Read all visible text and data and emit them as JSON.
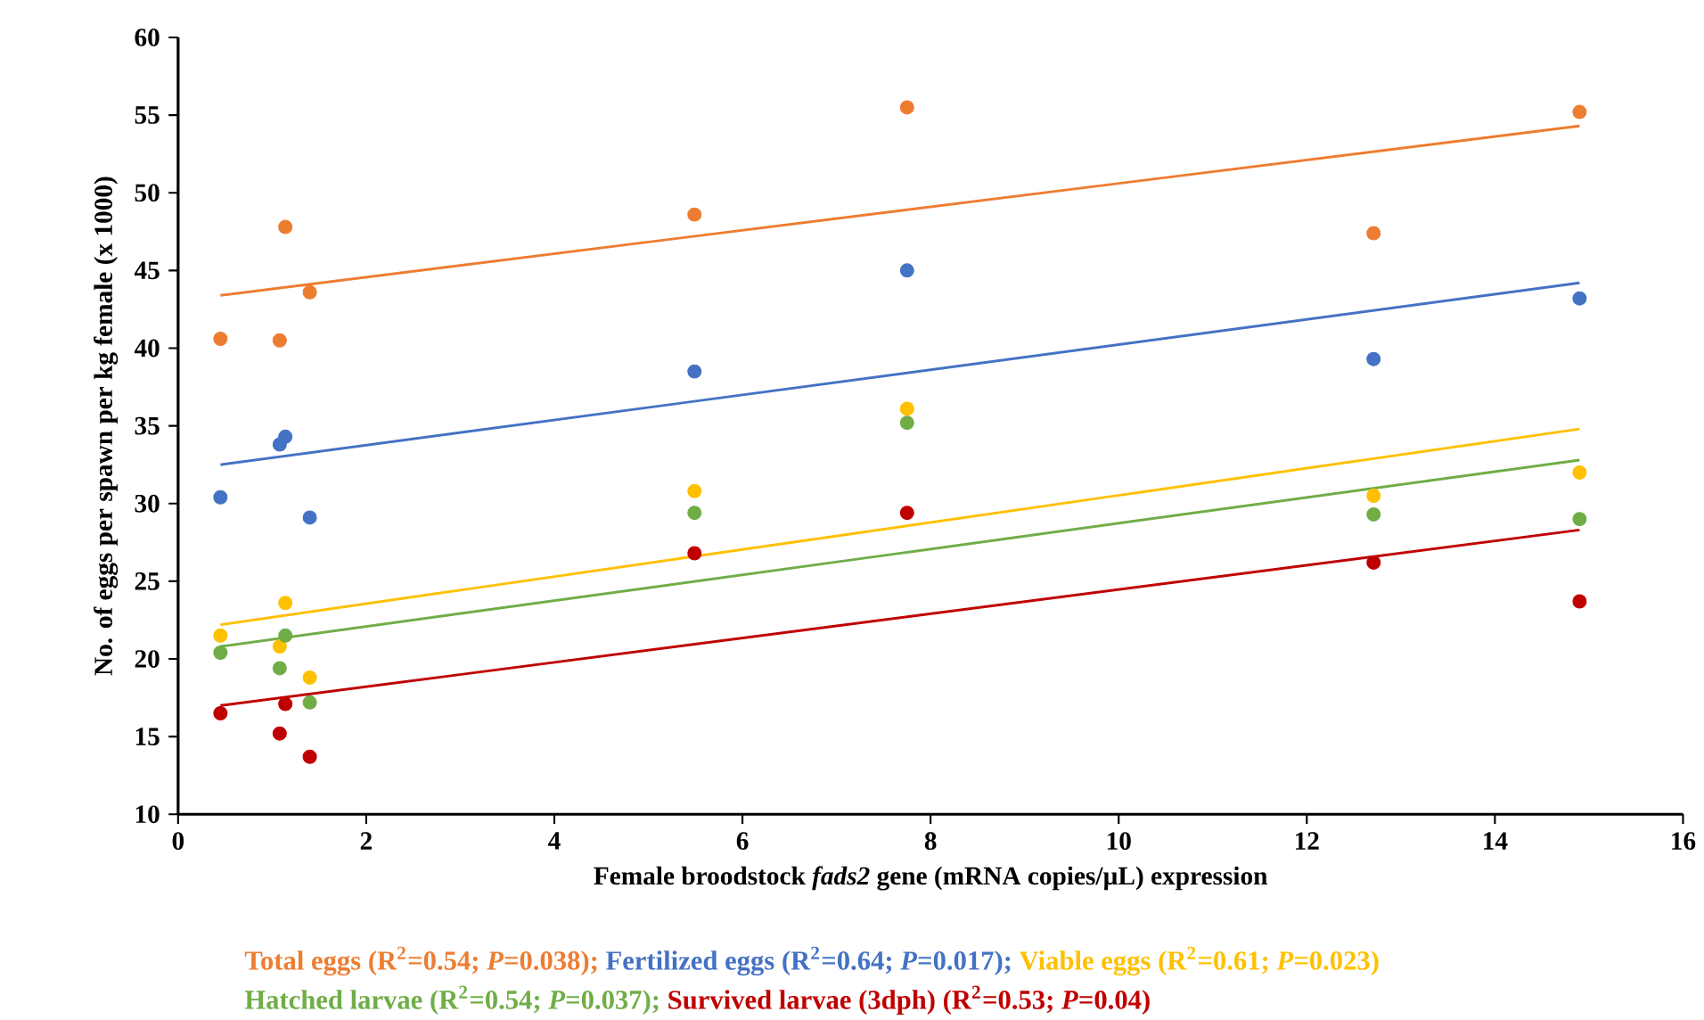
{
  "chart_data": {
    "type": "scatter",
    "xlabel": "Female broodstock *fads2* gene (mRNA copies/µL) expression",
    "ylabel": "No. of eggs per spawn per kg female (x 1000)",
    "xlim": [
      0,
      16
    ],
    "xticks": [
      0,
      2,
      4,
      6,
      8,
      10,
      12,
      14,
      16
    ],
    "ylim": [
      10,
      60
    ],
    "yticks": [
      10,
      15,
      20,
      25,
      30,
      35,
      40,
      45,
      50,
      55,
      60
    ],
    "grid": false,
    "legend": "bottom",
    "series": [
      {
        "name": "Total eggs (R$^{2}$=0.54; *P*=0.038);",
        "marker": "circle",
        "color": "#ed7d31",
        "x": [
          0.45,
          1.08,
          1.14,
          1.4,
          5.49,
          7.75,
          12.71,
          14.9
        ],
        "values": [
          40.6,
          40.5,
          47.8,
          43.6,
          48.6,
          55.5,
          47.4,
          55.2
        ]
      },
      {
        "name": "Fertilized eggs (R$^{2}$=0.64; *P*=0.017);",
        "marker": "circle",
        "color": "#4472c4",
        "x": [
          0.45,
          1.08,
          1.14,
          1.4,
          5.49,
          7.75,
          12.71,
          14.9
        ],
        "values": [
          30.4,
          33.8,
          34.3,
          29.1,
          38.5,
          45.0,
          39.3,
          43.2
        ]
      },
      {
        "name": "Viable eggs (R$^{2}$=0.61; *P*=0.023)",
        "marker": "circle",
        "color": "#ffc000",
        "x": [
          0.45,
          1.08,
          1.14,
          1.4,
          5.49,
          7.75,
          12.71,
          14.9
        ],
        "values": [
          21.5,
          20.8,
          23.6,
          18.8,
          30.8,
          36.1,
          30.5,
          32.0
        ]
      },
      {
        "name": "Hatched larvae (R$^{2}$=0.54; *P*=0.037);",
        "marker": "circle",
        "color": "#70ad47",
        "x": [
          0.45,
          1.08,
          1.14,
          1.4,
          5.49,
          7.75,
          12.71,
          14.9
        ],
        "values": [
          20.4,
          19.4,
          21.5,
          17.2,
          29.4,
          35.2,
          29.3,
          29.0
        ]
      },
      {
        "name": "Survived larvae (3dph) (R$^{2}$=0.53; *P*=0.04)",
        "marker": "circle",
        "color": "#c00000",
        "x": [
          0.45,
          1.08,
          1.14,
          1.4,
          5.49,
          7.75,
          12.71,
          14.9
        ],
        "values": [
          16.5,
          15.2,
          17.1,
          13.7,
          26.8,
          29.4,
          26.2,
          23.7
        ]
      },
      {
        "type": "line",
        "marker": "none",
        "color": "#ed7d31",
        "x": [
          0.45,
          14.9
        ],
        "values": [
          43.4,
          54.3
        ]
      },
      {
        "type": "line",
        "marker": "none",
        "color": "#4472c4",
        "x": [
          0.45,
          14.9
        ],
        "values": [
          32.5,
          44.2
        ]
      },
      {
        "type": "line",
        "marker": "none",
        "color": "#ffc000",
        "x": [
          0.45,
          14.9
        ],
        "values": [
          22.2,
          34.8
        ]
      },
      {
        "type": "line",
        "marker": "none",
        "color": "#70ad47",
        "x": [
          0.45,
          14.9
        ],
        "values": [
          20.8,
          32.8
        ]
      },
      {
        "type": "line",
        "marker": "none",
        "color": "#c00000",
        "x": [
          0.45,
          14.9
        ],
        "values": [
          17.0,
          28.3
        ]
      }
    ]
  }
}
